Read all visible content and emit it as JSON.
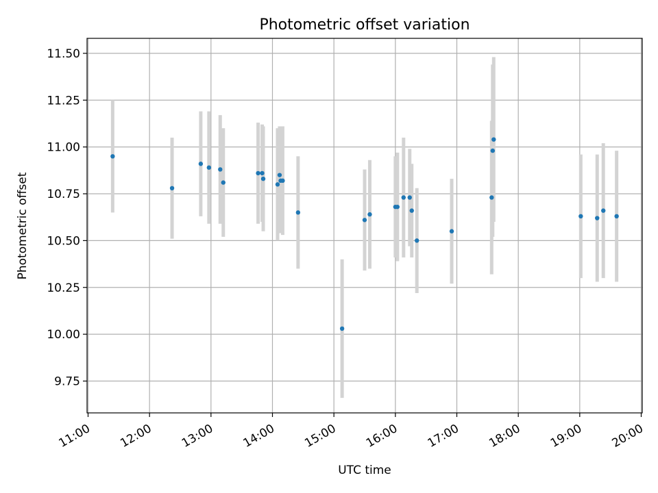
{
  "chart_data": {
    "type": "scatter",
    "title": "Photometric offset variation",
    "xlabel": "UTC time",
    "ylabel": "Photometric offset",
    "x_is_time": true,
    "xlim": [
      "10:59",
      "20:01"
    ],
    "ylim": [
      9.58,
      11.58
    ],
    "x_ticks": [
      "11:00",
      "12:00",
      "13:00",
      "14:00",
      "15:00",
      "16:00",
      "17:00",
      "18:00",
      "19:00",
      "20:00"
    ],
    "y_ticks": [
      9.75,
      10.0,
      10.25,
      10.5,
      10.75,
      11.0,
      11.25,
      11.5
    ],
    "y_tick_labels": [
      "9.75",
      "10.00",
      "10.25",
      "10.50",
      "10.75",
      "11.00",
      "11.25",
      "11.50"
    ],
    "grid": true,
    "colors": {
      "point": "#1f77b4",
      "errorbar": "#d3d3d3",
      "grid": "#b0b0b0",
      "axes": "#000000"
    },
    "series": [
      {
        "points": [
          {
            "x": "11:24",
            "y": 10.95,
            "err": 0.3
          },
          {
            "x": "12:22",
            "y": 10.78,
            "err": 0.27
          },
          {
            "x": "12:50",
            "y": 10.91,
            "err": 0.28
          },
          {
            "x": "12:58",
            "y": 10.89,
            "err": 0.3
          },
          {
            "x": "13:09",
            "y": 10.88,
            "err": 0.29
          },
          {
            "x": "13:12",
            "y": 10.81,
            "err": 0.29
          },
          {
            "x": "13:46",
            "y": 10.86,
            "err": 0.27
          },
          {
            "x": "13:50",
            "y": 10.86,
            "err": 0.26
          },
          {
            "x": "13:51",
            "y": 10.83,
            "err": 0.28
          },
          {
            "x": "14:05",
            "y": 10.8,
            "err": 0.3
          },
          {
            "x": "14:07",
            "y": 10.85,
            "err": 0.26
          },
          {
            "x": "14:08",
            "y": 10.82,
            "err": 0.28
          },
          {
            "x": "14:10",
            "y": 10.82,
            "err": 0.29
          },
          {
            "x": "14:25",
            "y": 10.65,
            "err": 0.3
          },
          {
            "x": "15:08",
            "y": 10.03,
            "err": 0.37
          },
          {
            "x": "15:30",
            "y": 10.61,
            "err": 0.27
          },
          {
            "x": "15:35",
            "y": 10.64,
            "err": 0.29
          },
          {
            "x": "16:00",
            "y": 10.68,
            "err": 0.27
          },
          {
            "x": "16:02",
            "y": 10.68,
            "err": 0.29
          },
          {
            "x": "16:08",
            "y": 10.73,
            "err": 0.32
          },
          {
            "x": "16:14",
            "y": 10.73,
            "err": 0.26
          },
          {
            "x": "16:16",
            "y": 10.66,
            "err": 0.25
          },
          {
            "x": "16:21",
            "y": 10.5,
            "err": 0.28
          },
          {
            "x": "16:55",
            "y": 10.55,
            "err": 0.28
          },
          {
            "x": "17:34",
            "y": 10.73,
            "err": 0.41
          },
          {
            "x": "17:35",
            "y": 10.98,
            "err": 0.46
          },
          {
            "x": "17:36",
            "y": 11.04,
            "err": 0.44
          },
          {
            "x": "19:01",
            "y": 10.63,
            "err": 0.33
          },
          {
            "x": "19:17",
            "y": 10.62,
            "err": 0.34
          },
          {
            "x": "19:23",
            "y": 10.66,
            "err": 0.36
          },
          {
            "x": "19:36",
            "y": 10.63,
            "err": 0.35
          }
        ]
      }
    ]
  }
}
